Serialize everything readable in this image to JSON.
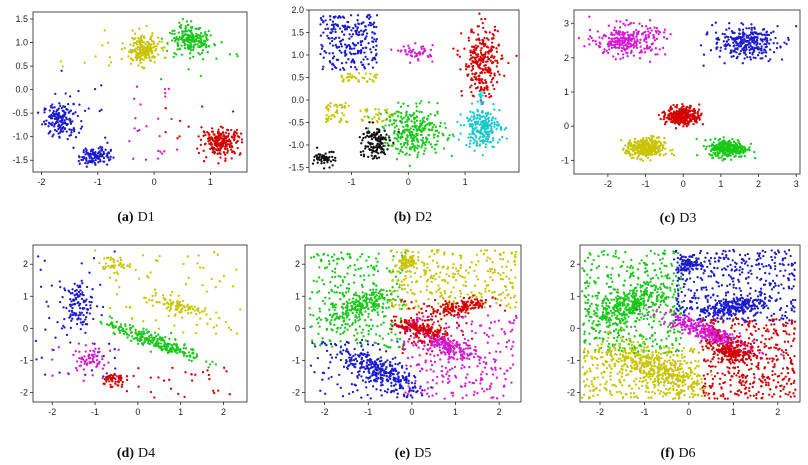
{
  "colors": {
    "blue": "#1a1ad0",
    "yellow": "#c8c400",
    "green": "#18c818",
    "red": "#d40000",
    "magenta": "#d418d4",
    "black": "#111111",
    "cyan": "#18c8c8"
  },
  "chart_data": [
    {
      "type": "scatter",
      "id": "d1",
      "caption_tag": "(a)",
      "caption_name": "D1",
      "xlim": [
        -2.15,
        1.65
      ],
      "ylim": [
        -1.75,
        1.65
      ],
      "xticks": [
        -2,
        -1,
        0,
        1
      ],
      "yticks": [
        -1.5,
        -1.0,
        -0.5,
        0.0,
        0.5,
        1.0,
        1.5
      ],
      "ytick_labels": [
        "-1.5",
        "-1.0",
        "-0.5",
        "0.0",
        "0.5",
        "1.0",
        "1.5"
      ],
      "clusters": [
        {
          "color": "blue",
          "shape": "gauss",
          "cx": -1.65,
          "cy": -0.65,
          "sx": 0.16,
          "sy": 0.17,
          "rot": 0,
          "n": 170
        },
        {
          "color": "blue",
          "shape": "gauss",
          "cx": -1.05,
          "cy": -1.4,
          "sx": 0.14,
          "sy": 0.1,
          "rot": 0,
          "n": 110
        },
        {
          "color": "yellow",
          "shape": "gauss",
          "cx": -0.2,
          "cy": 0.85,
          "sx": 0.15,
          "sy": 0.15,
          "rot": 0,
          "n": 200
        },
        {
          "color": "green",
          "shape": "gauss",
          "cx": 0.65,
          "cy": 1.05,
          "sx": 0.17,
          "sy": 0.14,
          "rot": -15,
          "n": 200
        },
        {
          "color": "red",
          "shape": "gauss",
          "cx": 1.2,
          "cy": -1.1,
          "sx": 0.17,
          "sy": 0.14,
          "rot": 0,
          "n": 220
        },
        {
          "color": "yellow",
          "shape": "uniform",
          "x0": -1.9,
          "x1": 0.2,
          "y0": 0.3,
          "y1": 1.55,
          "n": 14
        },
        {
          "color": "green",
          "shape": "uniform",
          "x0": 0.1,
          "x1": 1.5,
          "y0": 0.2,
          "y1": 1.5,
          "n": 12
        },
        {
          "color": "magenta",
          "shape": "uniform",
          "x0": -0.5,
          "x1": 0.5,
          "y0": -1.6,
          "y1": 0.1,
          "n": 24
        },
        {
          "color": "red",
          "shape": "uniform",
          "x0": 0.2,
          "x1": 1.5,
          "y0": -1.6,
          "y1": -0.2,
          "n": 14
        },
        {
          "color": "blue",
          "shape": "uniform",
          "x0": -2.0,
          "x1": -0.8,
          "y0": -1.6,
          "y1": 0.4,
          "n": 16
        }
      ]
    },
    {
      "type": "scatter",
      "id": "d2",
      "caption_tag": "(b)",
      "caption_name": "D2",
      "xlim": [
        -1.75,
        1.95
      ],
      "ylim": [
        -1.6,
        2.0
      ],
      "xticks": [
        -1,
        0,
        1
      ],
      "yticks": [
        -1.5,
        -1.0,
        -0.5,
        0.0,
        0.5,
        1.0,
        1.5,
        2.0
      ],
      "ytick_labels": [
        "-1.5",
        "-1.0",
        "-0.5",
        "0.0",
        "0.5",
        "1.0",
        "1.5",
        "2.0"
      ],
      "clusters": [
        {
          "color": "blue",
          "shape": "uniform",
          "x0": -1.55,
          "x1": -0.55,
          "y0": 0.65,
          "y1": 1.9,
          "n": 240
        },
        {
          "color": "yellow",
          "shape": "uniform",
          "x0": -1.2,
          "x1": -0.55,
          "y0": 0.4,
          "y1": 0.6,
          "n": 34
        },
        {
          "color": "magenta",
          "shape": "gauss",
          "cx": 0.15,
          "cy": 1.05,
          "sx": 0.15,
          "sy": 0.08,
          "rot": 0,
          "n": 50
        },
        {
          "color": "red",
          "shape": "gauss",
          "cx": 1.3,
          "cy": 0.85,
          "sx": 0.17,
          "sy": 0.38,
          "rot": 0,
          "n": 260
        },
        {
          "color": "red",
          "shape": "uniform",
          "x0": 1.2,
          "x1": 1.38,
          "y0": 0.2,
          "y1": 0.5,
          "n": 16
        },
        {
          "color": "yellow",
          "shape": "uniform",
          "x0": -1.45,
          "x1": -1.05,
          "y0": -0.5,
          "y1": -0.05,
          "n": 45
        },
        {
          "color": "yellow",
          "shape": "uniform",
          "x0": -0.85,
          "x1": -0.25,
          "y0": -0.5,
          "y1": -0.2,
          "n": 35
        },
        {
          "color": "green",
          "shape": "gauss",
          "cx": 0.12,
          "cy": -0.7,
          "sx": 0.27,
          "sy": 0.26,
          "rot": 0,
          "n": 290
        },
        {
          "color": "cyan",
          "shape": "gauss",
          "cx": 1.3,
          "cy": -0.6,
          "sx": 0.16,
          "sy": 0.22,
          "rot": 0,
          "n": 230
        },
        {
          "color": "cyan",
          "shape": "uniform",
          "x0": 1.25,
          "x1": 1.35,
          "y0": -0.1,
          "y1": 0.2,
          "n": 12
        },
        {
          "color": "black",
          "shape": "gauss",
          "cx": -0.6,
          "cy": -0.95,
          "sx": 0.13,
          "sy": 0.2,
          "rot": 0,
          "n": 130
        },
        {
          "color": "black",
          "shape": "gauss",
          "cx": -1.45,
          "cy": -1.3,
          "sx": 0.1,
          "sy": 0.08,
          "rot": 0,
          "n": 60
        }
      ]
    },
    {
      "type": "scatter",
      "id": "d3",
      "caption_tag": "(c)",
      "caption_name": "D3",
      "xlim": [
        -2.9,
        3.1
      ],
      "ylim": [
        -1.4,
        3.4
      ],
      "xticks": [
        -2,
        -1,
        0,
        1,
        2,
        3
      ],
      "yticks": [
        -1,
        0,
        1,
        2,
        3
      ],
      "ytick_labels": [
        "-1",
        "0",
        "1",
        "2",
        "3"
      ],
      "clusters": [
        {
          "color": "magenta",
          "shape": "gauss",
          "cx": -1.5,
          "cy": 2.5,
          "sx": 0.42,
          "sy": 0.22,
          "rot": 0,
          "n": 280
        },
        {
          "color": "blue",
          "shape": "gauss",
          "cx": 1.65,
          "cy": 2.45,
          "sx": 0.42,
          "sy": 0.22,
          "rot": 0,
          "n": 280
        },
        {
          "color": "red",
          "shape": "gauss",
          "cx": 0.0,
          "cy": 0.3,
          "sx": 0.22,
          "sy": 0.14,
          "rot": 0,
          "n": 320
        },
        {
          "color": "yellow",
          "shape": "gauss",
          "cx": -1.0,
          "cy": -0.65,
          "sx": 0.25,
          "sy": 0.15,
          "rot": 0,
          "n": 320
        },
        {
          "color": "green",
          "shape": "gauss",
          "cx": 1.2,
          "cy": -0.65,
          "sx": 0.25,
          "sy": 0.13,
          "rot": 0,
          "n": 320
        },
        {
          "color": "magenta",
          "shape": "uniform",
          "x0": -2.6,
          "x1": -0.3,
          "y0": 1.8,
          "y1": 3.3,
          "n": 10
        },
        {
          "color": "blue",
          "shape": "uniform",
          "x0": 0.3,
          "x1": 3.0,
          "y0": 1.7,
          "y1": 3.2,
          "n": 10
        }
      ]
    },
    {
      "type": "scatter",
      "id": "d4",
      "caption_tag": "(d)",
      "caption_name": "D4",
      "xlim": [
        -2.45,
        2.55
      ],
      "ylim": [
        -2.3,
        2.6
      ],
      "xticks": [
        -2,
        -1,
        0,
        1,
        2
      ],
      "yticks": [
        -2,
        -1,
        0,
        1,
        2
      ],
      "ytick_labels": [
        "-2",
        "-1",
        "0",
        "1",
        "2"
      ],
      "clusters": [
        {
          "color": "blue",
          "shape": "gauss",
          "cx": -1.4,
          "cy": 0.7,
          "sx": 0.17,
          "sy": 0.38,
          "rot": 0,
          "n": 120
        },
        {
          "color": "blue",
          "shape": "uniform",
          "x0": -2.4,
          "x1": -0.5,
          "y0": -1.5,
          "y1": 2.4,
          "n": 40
        },
        {
          "color": "yellow",
          "shape": "gauss",
          "cx": -0.6,
          "cy": 2.0,
          "sx": 0.2,
          "sy": 0.12,
          "rot": 0,
          "n": 40
        },
        {
          "color": "yellow",
          "shape": "gauss",
          "cx": 0.9,
          "cy": 0.7,
          "sx": 0.38,
          "sy": 0.12,
          "rot": -18,
          "n": 90
        },
        {
          "color": "yellow",
          "shape": "uniform",
          "x0": -0.7,
          "x1": 2.4,
          "y0": -0.2,
          "y1": 2.4,
          "n": 60
        },
        {
          "color": "green",
          "shape": "gauss",
          "cx": 0.4,
          "cy": -0.4,
          "sx": 0.62,
          "sy": 0.11,
          "rot": -26,
          "n": 260
        },
        {
          "color": "magenta",
          "shape": "gauss",
          "cx": -1.15,
          "cy": -0.95,
          "sx": 0.15,
          "sy": 0.17,
          "rot": 0,
          "n": 60
        },
        {
          "color": "magenta",
          "shape": "uniform",
          "x0": -2.0,
          "x1": -0.4,
          "y0": -2.2,
          "y1": -0.2,
          "n": 20
        },
        {
          "color": "red",
          "shape": "gauss",
          "cx": -0.6,
          "cy": -1.6,
          "sx": 0.14,
          "sy": 0.12,
          "rot": 0,
          "n": 50
        },
        {
          "color": "red",
          "shape": "uniform",
          "x0": -0.5,
          "x1": 2.3,
          "y0": -2.2,
          "y1": -1.2,
          "n": 30
        }
      ]
    },
    {
      "type": "scatter",
      "id": "d5",
      "caption_tag": "(e)",
      "caption_name": "D5",
      "xlim": [
        -2.45,
        2.5
      ],
      "ylim": [
        -2.3,
        2.6
      ],
      "xticks": [
        -2,
        -1,
        0,
        1,
        2
      ],
      "yticks": [
        -2,
        -1,
        0,
        1,
        2
      ],
      "ytick_labels": [
        "-2",
        "-1",
        "0",
        "1",
        "2"
      ],
      "clusters": [
        {
          "color": "green",
          "shape": "uniform",
          "x0": -2.35,
          "x1": -0.15,
          "y0": -0.6,
          "y1": 2.4,
          "n": 260
        },
        {
          "color": "green",
          "shape": "gauss",
          "cx": -1.1,
          "cy": 0.7,
          "sx": 0.45,
          "sy": 0.2,
          "rot": 38,
          "n": 220
        },
        {
          "color": "yellow",
          "shape": "uniform",
          "x0": -0.5,
          "x1": 2.4,
          "y0": 0.6,
          "y1": 2.45,
          "n": 280
        },
        {
          "color": "yellow",
          "shape": "gauss",
          "cx": -0.1,
          "cy": 2.05,
          "sx": 0.14,
          "sy": 0.12,
          "rot": 0,
          "n": 70
        },
        {
          "color": "red",
          "shape": "gauss",
          "cx": 1.1,
          "cy": 0.65,
          "sx": 0.38,
          "sy": 0.12,
          "rot": 15,
          "n": 160
        },
        {
          "color": "red",
          "shape": "gauss",
          "cx": 0.2,
          "cy": -0.05,
          "sx": 0.32,
          "sy": 0.13,
          "rot": -22,
          "n": 200
        },
        {
          "color": "red",
          "shape": "uniform",
          "x0": -0.3,
          "x1": 1.4,
          "y0": -0.8,
          "y1": 0.9,
          "n": 60
        },
        {
          "color": "magenta",
          "shape": "gauss",
          "cx": 0.9,
          "cy": -0.6,
          "sx": 0.35,
          "sy": 0.12,
          "rot": -25,
          "n": 150
        },
        {
          "color": "magenta",
          "shape": "uniform",
          "x0": -0.2,
          "x1": 2.4,
          "y0": -2.2,
          "y1": 0.4,
          "n": 240
        },
        {
          "color": "blue",
          "shape": "gauss",
          "cx": -0.8,
          "cy": -1.3,
          "sx": 0.55,
          "sy": 0.2,
          "rot": -35,
          "n": 300
        },
        {
          "color": "blue",
          "shape": "uniform",
          "x0": -2.35,
          "x1": 0.1,
          "y0": -2.2,
          "y1": -0.4,
          "n": 90
        }
      ]
    },
    {
      "type": "scatter",
      "id": "d6",
      "caption_tag": "(f)",
      "caption_name": "D6",
      "xlim": [
        -2.45,
        2.5
      ],
      "ylim": [
        -2.3,
        2.6
      ],
      "xticks": [
        -2,
        -1,
        0,
        1,
        2
      ],
      "yticks": [
        -2,
        -1,
        0,
        1,
        2
      ],
      "ytick_labels": [
        "-2",
        "-1",
        "0",
        "1",
        "2"
      ],
      "clusters": [
        {
          "color": "green",
          "shape": "uniform",
          "x0": -2.4,
          "x1": -0.15,
          "y0": -0.8,
          "y1": 2.45,
          "n": 420
        },
        {
          "color": "green",
          "shape": "gauss",
          "cx": -1.3,
          "cy": 0.75,
          "sx": 0.45,
          "sy": 0.22,
          "rot": 30,
          "n": 300
        },
        {
          "color": "blue",
          "shape": "uniform",
          "x0": -0.3,
          "x1": 2.4,
          "y0": 0.2,
          "y1": 2.45,
          "n": 420
        },
        {
          "color": "blue",
          "shape": "gauss",
          "cx": 0.0,
          "cy": 2.0,
          "sx": 0.15,
          "sy": 0.1,
          "rot": 0,
          "n": 80
        },
        {
          "color": "blue",
          "shape": "gauss",
          "cx": 1.1,
          "cy": 0.7,
          "sx": 0.4,
          "sy": 0.12,
          "rot": 15,
          "n": 200
        },
        {
          "color": "magenta",
          "shape": "gauss",
          "cx": 0.4,
          "cy": -0.1,
          "sx": 0.55,
          "sy": 0.13,
          "rot": -28,
          "n": 320
        },
        {
          "color": "red",
          "shape": "uniform",
          "x0": 0.3,
          "x1": 2.4,
          "y0": -2.2,
          "y1": 0.3,
          "n": 420
        },
        {
          "color": "red",
          "shape": "gauss",
          "cx": 0.95,
          "cy": -0.75,
          "sx": 0.25,
          "sy": 0.12,
          "rot": -25,
          "n": 140
        },
        {
          "color": "yellow",
          "shape": "uniform",
          "x0": -2.4,
          "x1": 0.3,
          "y0": -2.2,
          "y1": -0.6,
          "n": 320
        },
        {
          "color": "yellow",
          "shape": "gauss",
          "cx": -0.8,
          "cy": -1.2,
          "sx": 0.6,
          "sy": 0.25,
          "rot": -35,
          "n": 340
        }
      ]
    }
  ]
}
